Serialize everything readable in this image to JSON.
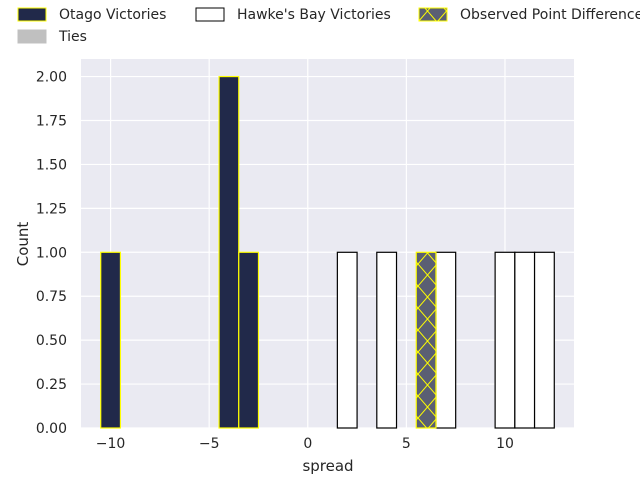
{
  "chart_data": {
    "type": "bar",
    "title": "",
    "xlabel": "spread",
    "ylabel": "Count",
    "xlim": [
      -11.5,
      13.5
    ],
    "ylim": [
      0,
      2.1
    ],
    "bin_width": 1,
    "grid": true,
    "legend_position": "top",
    "x_ticks": [
      {
        "value": -10,
        "label": "−10"
      },
      {
        "value": -5,
        "label": "−5"
      },
      {
        "value": 0,
        "label": "0"
      },
      {
        "value": 5,
        "label": "5"
      },
      {
        "value": 10,
        "label": "10"
      }
    ],
    "y_ticks": [
      {
        "value": 0,
        "label": "0.00"
      },
      {
        "value": 0.25,
        "label": "0.25"
      },
      {
        "value": 0.5,
        "label": "0.50"
      },
      {
        "value": 0.75,
        "label": "0.75"
      },
      {
        "value": 1,
        "label": "1.00"
      },
      {
        "value": 1.25,
        "label": "1.25"
      },
      {
        "value": 1.5,
        "label": "1.50"
      },
      {
        "value": 1.75,
        "label": "1.75"
      },
      {
        "value": 2,
        "label": "2.00"
      }
    ],
    "series": [
      {
        "name": "Otago Victories",
        "fill": "#21294a",
        "stroke": "#ffff00",
        "hatch": false,
        "bins": [
          {
            "x0": -10.5,
            "x1": -9.5,
            "count": 1
          },
          {
            "x0": -4.5,
            "x1": -3.5,
            "count": 2
          },
          {
            "x0": -3.5,
            "x1": -2.5,
            "count": 1
          }
        ]
      },
      {
        "name": "Ties",
        "fill": "#c0c0c0",
        "stroke": "#c0c0c0",
        "hatch": false,
        "bins": []
      },
      {
        "name": "Hawke's Bay Victories",
        "fill": "#ffffff",
        "stroke": "#000000",
        "hatch": false,
        "bins": [
          {
            "x0": 1.5,
            "x1": 2.5,
            "count": 1
          },
          {
            "x0": 3.5,
            "x1": 4.5,
            "count": 1
          },
          {
            "x0": 6.5,
            "x1": 7.5,
            "count": 1
          },
          {
            "x0": 9.5,
            "x1": 10.5,
            "count": 1
          },
          {
            "x0": 10.5,
            "x1": 11.5,
            "count": 1
          },
          {
            "x0": 11.5,
            "x1": 12.5,
            "count": 1
          }
        ]
      },
      {
        "name": "Observed Point Difference",
        "fill": "#5a5f73",
        "stroke": "#ffff00",
        "hatch": true,
        "bins": [
          {
            "x0": 5.5,
            "x1": 6.5,
            "count": 1
          }
        ]
      }
    ],
    "colors": {
      "plot_background": "#eaeaf2",
      "grid": "#ffffff",
      "text": "#262626"
    }
  }
}
